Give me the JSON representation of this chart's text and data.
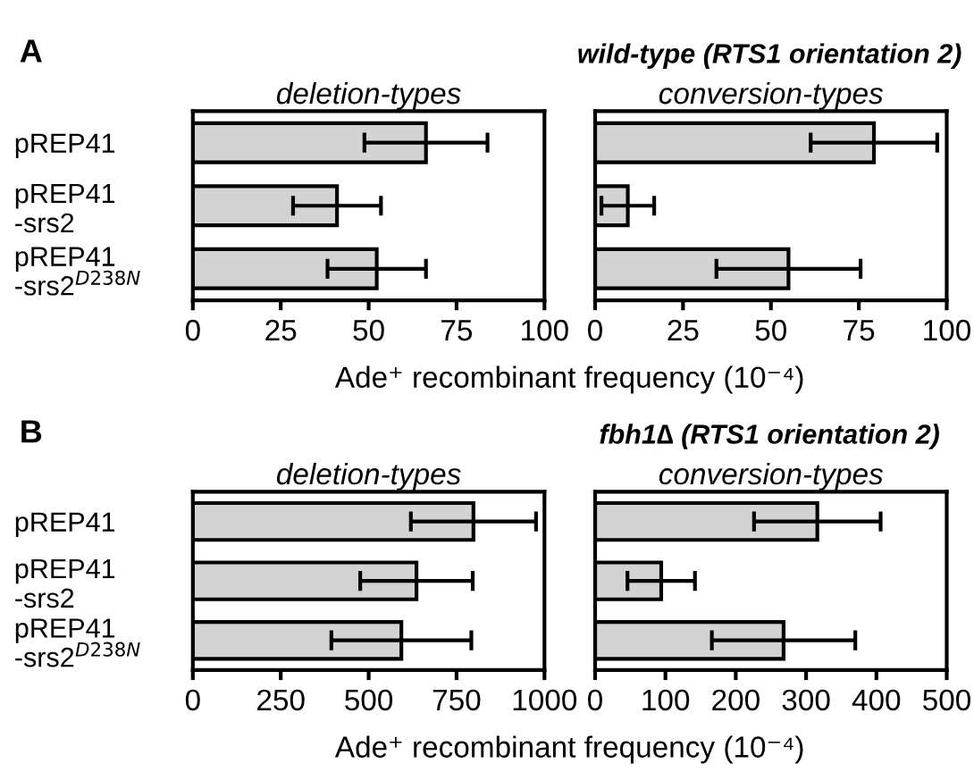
{
  "chart_data": [
    {
      "type": "bar",
      "orientation": "horizontal",
      "title": "deletion-types",
      "annotations": [
        "A",
        "wild-type (RTS1 orientation 2)"
      ],
      "xlabel": "Ade⁺ recombinant frequency (10⁻⁴)",
      "categories": [
        "pREP41",
        "pREP41\n-srs2",
        "pREP41\n-srs2$^{D238N}$"
      ],
      "values": [
        66.3,
        41,
        52.3
      ],
      "errors": [
        17.5,
        12.5,
        14
      ],
      "color": "#d3d3d3",
      "xlim": [
        0,
        100
      ],
      "xticks": [
        0,
        25,
        50,
        75,
        100
      ],
      "grid": false,
      "legend": false
    },
    {
      "type": "bar",
      "orientation": "horizontal",
      "title": "conversion-types",
      "categories": [
        null,
        null,
        null
      ],
      "values": [
        79.3,
        9.3,
        55
      ],
      "errors": [
        18,
        7.5,
        20.5
      ],
      "color": "#d3d3d3",
      "xlim": [
        0,
        100
      ],
      "xticks": [
        0,
        25,
        50,
        75,
        100
      ],
      "tick_labels": "x",
      "grid": false,
      "legend": false
    },
    {
      "type": "bar",
      "orientation": "horizontal",
      "title": "deletion-types",
      "annotations": [
        "B",
        "fbh1∆ (RTS1 orientation 2)"
      ],
      "xlabel": "Ade⁺ recombinant frequency (10⁻⁴)",
      "categories": [
        "pREP41",
        "pREP41\n-srs2",
        "pREP41\n-srs2$^{D238N}$"
      ],
      "values": [
        798,
        636,
        593
      ],
      "errors": [
        178,
        160,
        199
      ],
      "color": "#d3d3d3",
      "xlim": [
        0,
        1000
      ],
      "xticks": [
        0,
        250,
        500,
        750,
        1000
      ],
      "grid": false,
      "legend": false
    },
    {
      "type": "bar",
      "orientation": "horizontal",
      "title": "conversion-types",
      "categories": [
        null,
        null,
        null
      ],
      "values": [
        316,
        94,
        268
      ],
      "errors": [
        90,
        48,
        102
      ],
      "color": "#d3d3d3",
      "xlim": [
        0,
        500
      ],
      "xticks": [
        0,
        100,
        200,
        300,
        400,
        500
      ],
      "tick_labels": "x",
      "grid": false,
      "legend": false
    }
  ]
}
